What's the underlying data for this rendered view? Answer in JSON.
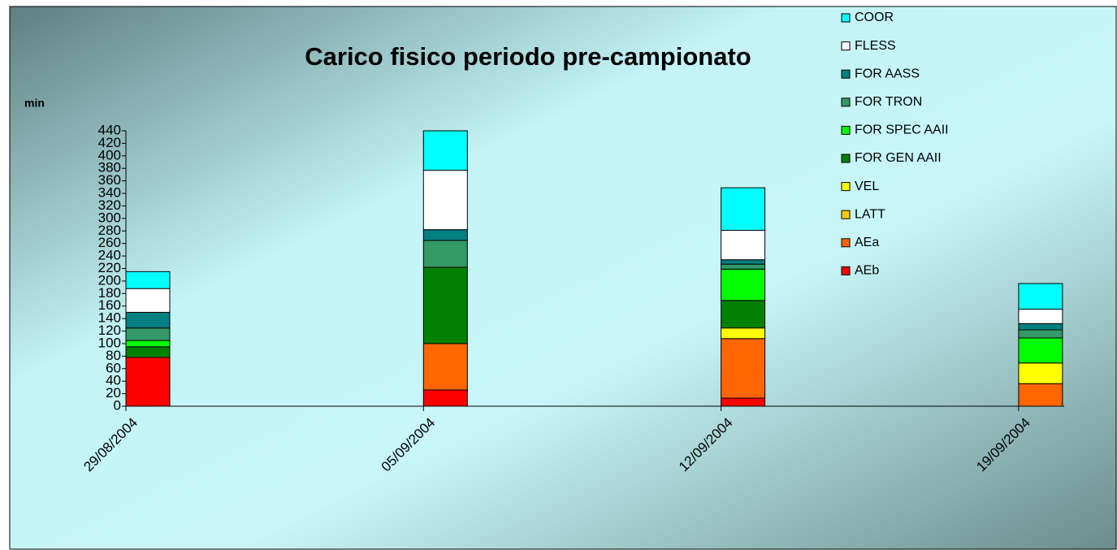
{
  "chart_data": {
    "type": "stacked-bar",
    "title": "Carico fisico periodo pre-campionato",
    "y_label": "min",
    "categories": [
      "29/08/2004",
      "05/09/2004",
      "12/09/2004",
      "19/09/2004"
    ],
    "series": [
      {
        "name": "AEb",
        "color": "#ff0000",
        "values": [
          78,
          26,
          13,
          0
        ]
      },
      {
        "name": "AEa",
        "color": "#ff6600",
        "values": [
          0,
          74,
          95,
          36
        ]
      },
      {
        "name": "LATT",
        "color": "#ffcc00",
        "values": [
          0,
          0,
          0,
          0
        ]
      },
      {
        "name": "VEL",
        "color": "#ffff00",
        "values": [
          0,
          0,
          17,
          33
        ]
      },
      {
        "name": "FOR GEN AAII",
        "color": "#008000",
        "values": [
          17,
          122,
          44,
          0
        ]
      },
      {
        "name": "FOR SPEC AAII",
        "color": "#00ff00",
        "values": [
          10,
          0,
          50,
          40
        ]
      },
      {
        "name": "FOR TRON",
        "color": "#339966",
        "values": [
          20,
          43,
          8,
          13
        ]
      },
      {
        "name": "FOR AASS",
        "color": "#008080",
        "values": [
          25,
          17,
          7,
          10
        ]
      },
      {
        "name": "FLESS",
        "color": "#ffffff",
        "values": [
          38,
          95,
          47,
          23
        ]
      },
      {
        "name": "COOR",
        "color": "#00ffff",
        "values": [
          27,
          63,
          68,
          41
        ]
      }
    ],
    "ylim": [
      0,
      440
    ],
    "yticks": [
      0,
      20,
      40,
      60,
      80,
      100,
      120,
      140,
      160,
      180,
      200,
      220,
      240,
      260,
      280,
      300,
      320,
      340,
      360,
      380,
      400,
      420,
      440
    ]
  }
}
